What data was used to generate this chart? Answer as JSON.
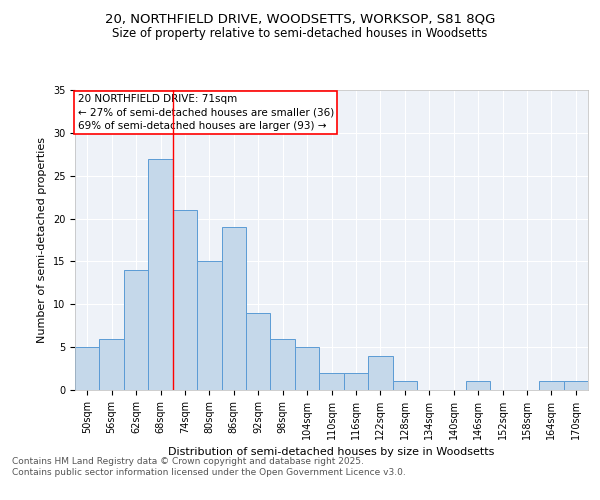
{
  "title_line1": "20, NORTHFIELD DRIVE, WOODSETTS, WORKSOP, S81 8QG",
  "title_line2": "Size of property relative to semi-detached houses in Woodsetts",
  "xlabel": "Distribution of semi-detached houses by size in Woodsetts",
  "ylabel": "Number of semi-detached properties",
  "categories": [
    "50sqm",
    "56sqm",
    "62sqm",
    "68sqm",
    "74sqm",
    "80sqm",
    "86sqm",
    "92sqm",
    "98sqm",
    "104sqm",
    "110sqm",
    "116sqm",
    "122sqm",
    "128sqm",
    "134sqm",
    "140sqm",
    "146sqm",
    "152sqm",
    "158sqm",
    "164sqm",
    "170sqm"
  ],
  "values": [
    5,
    6,
    14,
    27,
    21,
    15,
    19,
    9,
    6,
    5,
    2,
    2,
    4,
    1,
    0,
    0,
    1,
    0,
    0,
    1,
    1
  ],
  "bar_color": "#c5d8ea",
  "bar_edge_color": "#5b9bd5",
  "background_color": "#eef2f8",
  "grid_color": "#ffffff",
  "vline_x": 3.5,
  "vline_color": "red",
  "annotation_text": "20 NORTHFIELD DRIVE: 71sqm\n← 27% of semi-detached houses are smaller (36)\n69% of semi-detached houses are larger (93) →",
  "annotation_box_color": "white",
  "annotation_box_edge": "red",
  "ylim": [
    0,
    35
  ],
  "yticks": [
    0,
    5,
    10,
    15,
    20,
    25,
    30,
    35
  ],
  "footer": "Contains HM Land Registry data © Crown copyright and database right 2025.\nContains public sector information licensed under the Open Government Licence v3.0.",
  "title_fontsize": 9.5,
  "subtitle_fontsize": 8.5,
  "axis_label_fontsize": 8,
  "tick_fontsize": 7,
  "annotation_fontsize": 7.5,
  "footer_fontsize": 6.5
}
